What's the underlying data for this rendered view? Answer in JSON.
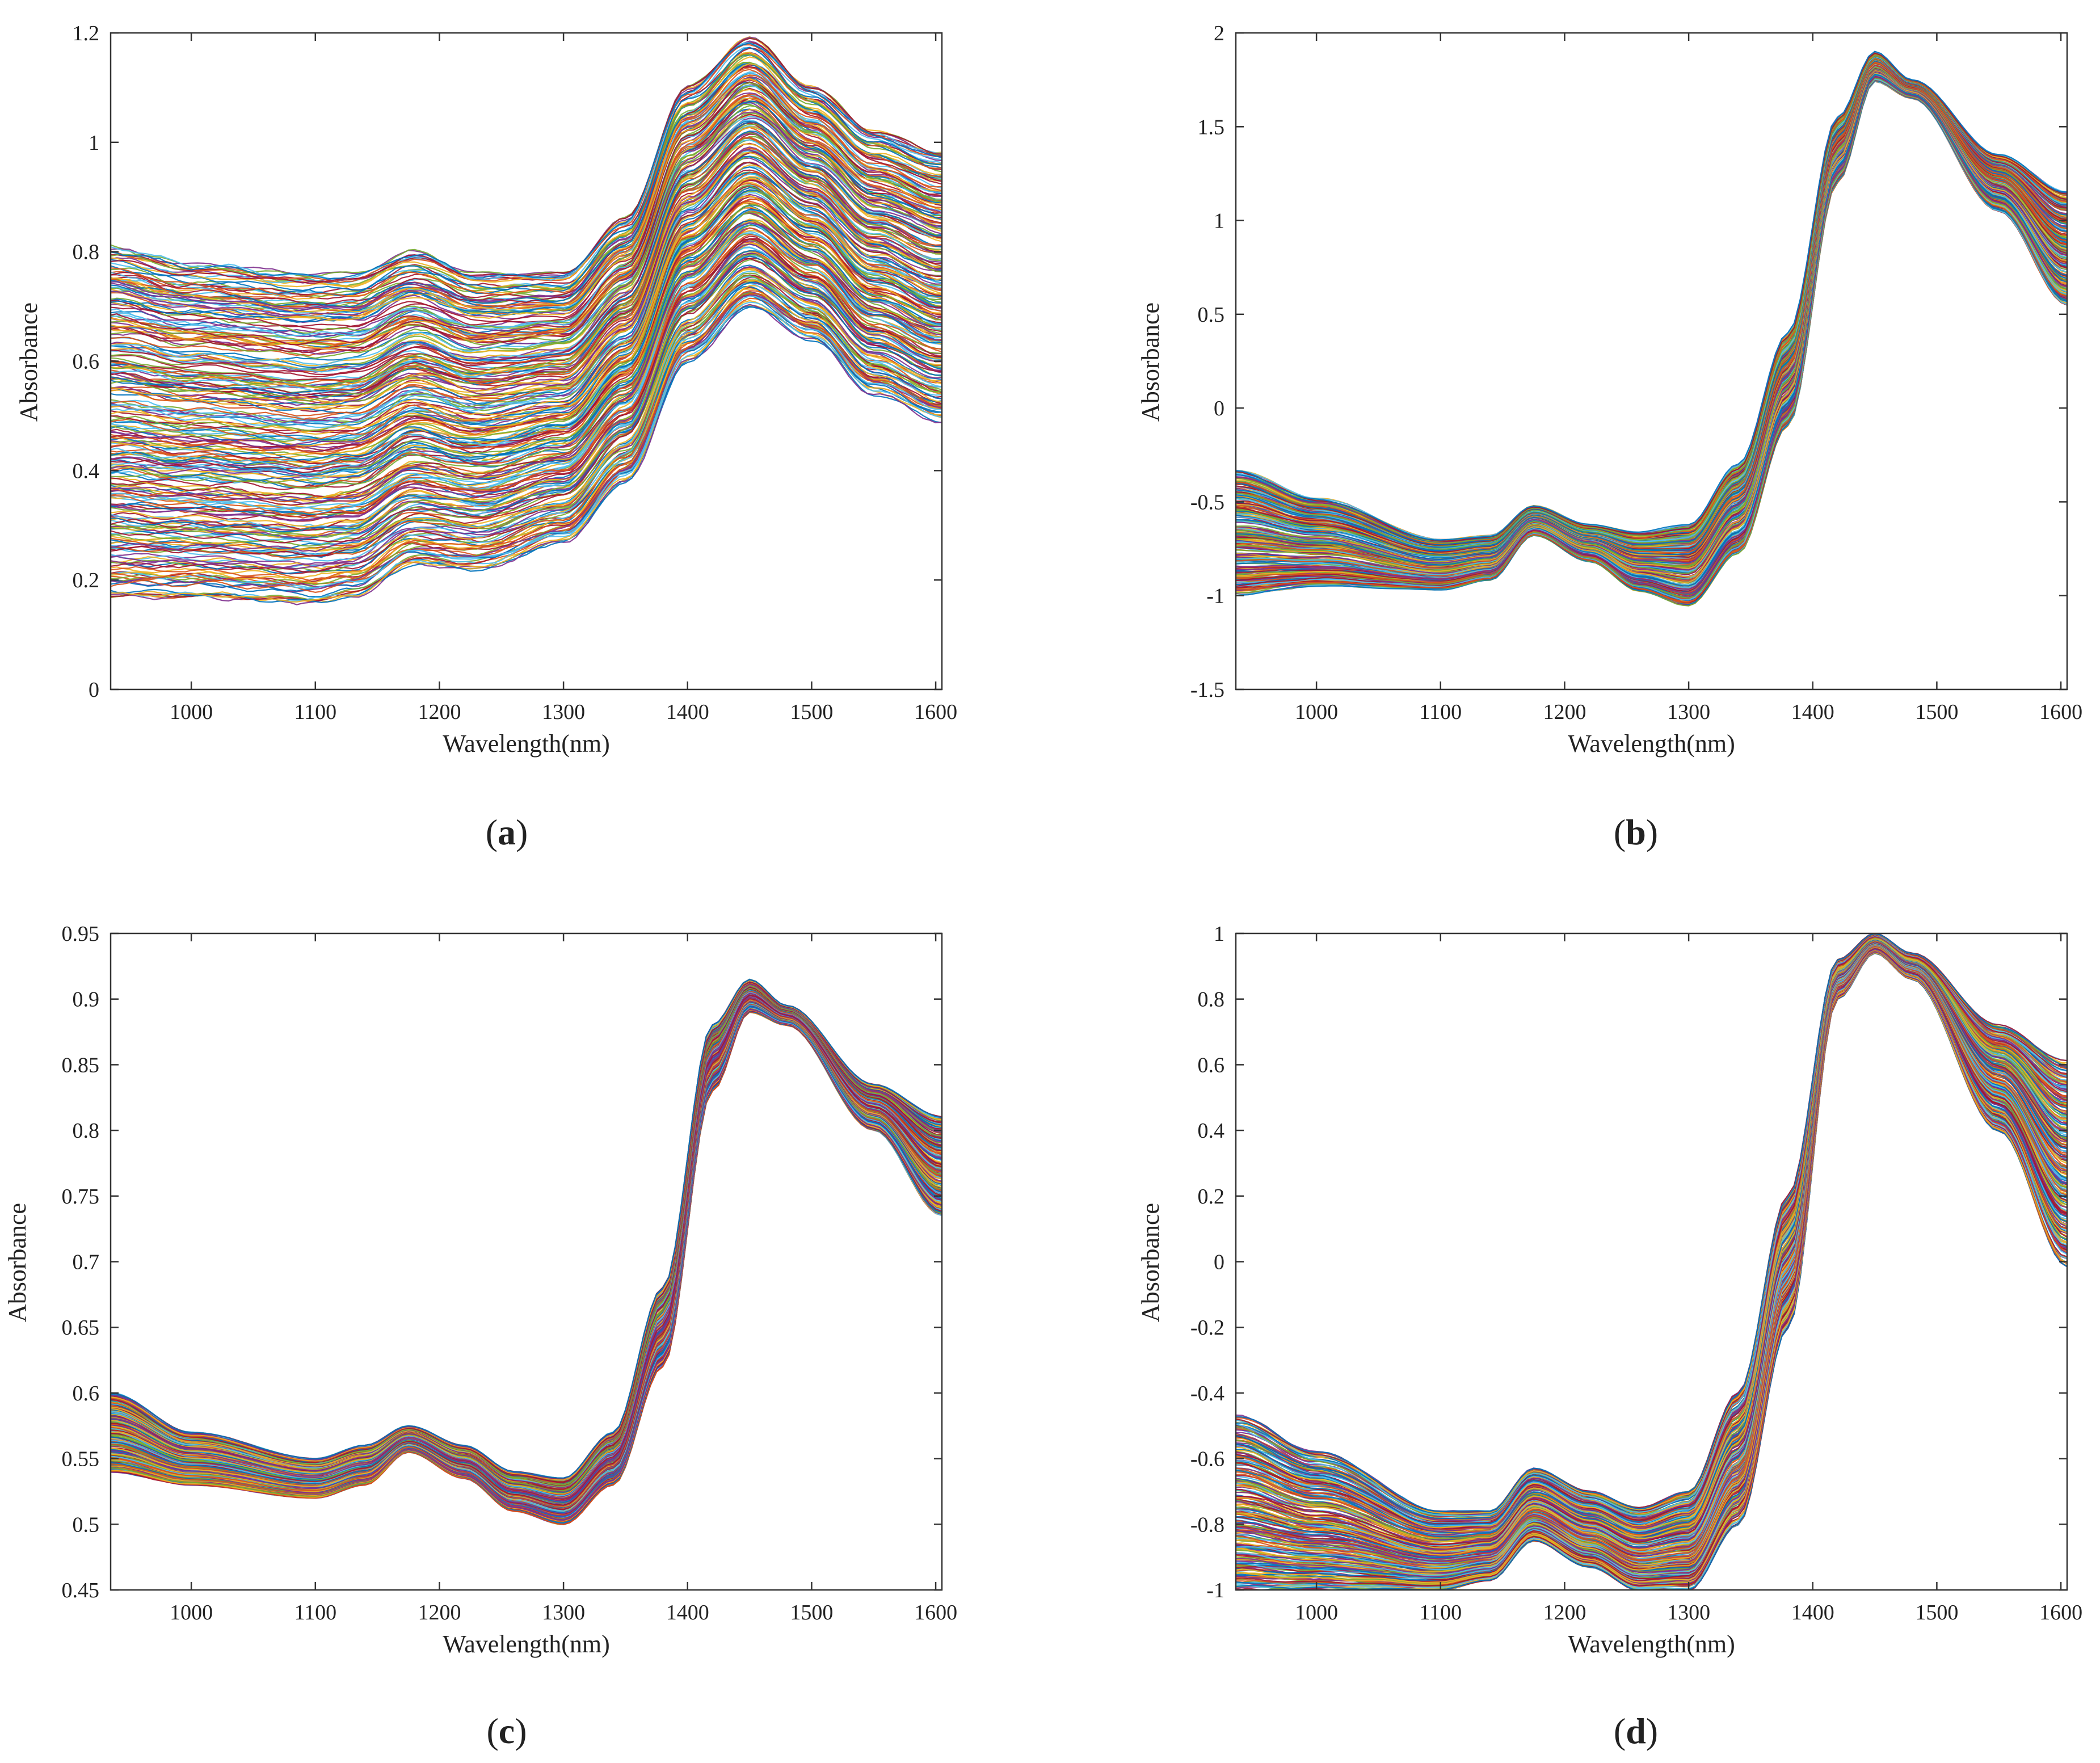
{
  "figure": {
    "panels": [
      "a",
      "b",
      "c",
      "d"
    ]
  },
  "chart_data": [
    {
      "id": "a",
      "type": "line",
      "caption": "a",
      "xlabel": "Wavelength(nm)",
      "ylabel": "Absorbance",
      "xlim": [
        935,
        1605
      ],
      "ylim": [
        0,
        1.2
      ],
      "xticks": [
        1000,
        1100,
        1200,
        1300,
        1400,
        1500,
        1600
      ],
      "yticks": [
        0,
        0.2,
        0.4,
        0.6,
        0.8,
        1,
        1.2
      ],
      "ytick_labels": [
        "0",
        "0.2",
        "0.4",
        "0.6",
        "0.8",
        "1",
        "1.2"
      ],
      "series_count": 260,
      "envelope": {
        "x": [
          935,
          1000,
          1100,
          1130,
          1180,
          1230,
          1300,
          1350,
          1400,
          1450,
          1500,
          1550,
          1605
        ],
        "upper": [
          0.81,
          0.78,
          0.76,
          0.76,
          0.8,
          0.76,
          0.76,
          0.86,
          1.1,
          1.19,
          1.1,
          1.02,
          0.98
        ],
        "lower": [
          0.17,
          0.17,
          0.16,
          0.17,
          0.23,
          0.22,
          0.27,
          0.38,
          0.6,
          0.7,
          0.64,
          0.54,
          0.49
        ]
      },
      "grid": false
    },
    {
      "id": "b",
      "type": "line",
      "caption": "b",
      "xlabel": "Wavelength(nm)",
      "ylabel": "Absorbance",
      "xlim": [
        935,
        1605
      ],
      "ylim": [
        -1.5,
        2
      ],
      "xticks": [
        1000,
        1100,
        1200,
        1300,
        1400,
        1500,
        1600
      ],
      "yticks": [
        -1.5,
        -1,
        -0.5,
        0,
        0.5,
        1,
        1.5,
        2
      ],
      "ytick_labels": [
        "-1.5",
        "-1",
        "-0.5",
        "0",
        "0.5",
        "1",
        "1.5",
        "2"
      ],
      "series_count": 260,
      "envelope": {
        "x": [
          935,
          1000,
          1100,
          1140,
          1175,
          1220,
          1260,
          1300,
          1340,
          1380,
          1420,
          1450,
          1480,
          1550,
          1605
        ],
        "upper": [
          -0.33,
          -0.48,
          -0.7,
          -0.68,
          -0.52,
          -0.62,
          -0.66,
          -0.62,
          -0.3,
          0.4,
          1.55,
          1.9,
          1.75,
          1.35,
          1.15
        ],
        "lower": [
          -1.0,
          -0.95,
          -0.97,
          -0.92,
          -0.68,
          -0.82,
          -0.98,
          -1.06,
          -0.78,
          -0.1,
          1.2,
          1.74,
          1.65,
          1.05,
          0.55
        ]
      },
      "grid": false
    },
    {
      "id": "c",
      "type": "line",
      "caption": "c",
      "xlabel": "Wavelength(nm)",
      "ylabel": "Absorbance",
      "xlim": [
        935,
        1605
      ],
      "ylim": [
        0.45,
        0.95
      ],
      "xticks": [
        1000,
        1100,
        1200,
        1300,
        1400,
        1500,
        1600
      ],
      "yticks": [
        0.45,
        0.5,
        0.55,
        0.6,
        0.65,
        0.7,
        0.75,
        0.8,
        0.85,
        0.9,
        0.95
      ],
      "ytick_labels": [
        "0.45",
        "0.5",
        "0.55",
        "0.6",
        "0.65",
        "0.7",
        "0.75",
        "0.8",
        "0.85",
        "0.9",
        "0.95"
      ],
      "series_count": 260,
      "envelope": {
        "x": [
          935,
          1000,
          1100,
          1140,
          1175,
          1220,
          1260,
          1300,
          1340,
          1380,
          1420,
          1450,
          1480,
          1550,
          1605
        ],
        "upper": [
          0.6,
          0.57,
          0.55,
          0.56,
          0.575,
          0.56,
          0.54,
          0.535,
          0.57,
          0.68,
          0.88,
          0.915,
          0.895,
          0.835,
          0.81
        ],
        "lower": [
          0.54,
          0.53,
          0.52,
          0.53,
          0.555,
          0.535,
          0.51,
          0.5,
          0.53,
          0.62,
          0.83,
          0.89,
          0.88,
          0.8,
          0.735
        ]
      },
      "grid": false
    },
    {
      "id": "d",
      "type": "line",
      "caption": "d",
      "xlabel": "Wavelength(nm)",
      "ylabel": "Absorbance",
      "xlim": [
        935,
        1605
      ],
      "ylim": [
        -1,
        1
      ],
      "xticks": [
        1000,
        1100,
        1200,
        1300,
        1400,
        1500,
        1600
      ],
      "yticks": [
        -1,
        -0.8,
        -0.6,
        -0.4,
        -0.2,
        0,
        0.2,
        0.4,
        0.6,
        0.8,
        1
      ],
      "ytick_labels": [
        "-1",
        "-0.8",
        "-0.6",
        "-0.4",
        "-0.2",
        "0",
        "0.2",
        "0.4",
        "0.6",
        "0.8",
        "1"
      ],
      "series_count": 260,
      "envelope": {
        "x": [
          935,
          1000,
          1100,
          1140,
          1175,
          1220,
          1260,
          1300,
          1340,
          1380,
          1420,
          1450,
          1480,
          1550,
          1605
        ],
        "upper": [
          -0.47,
          -0.58,
          -0.76,
          -0.76,
          -0.63,
          -0.7,
          -0.75,
          -0.7,
          -0.4,
          0.2,
          0.92,
          1.0,
          0.94,
          0.72,
          0.61
        ],
        "lower": [
          -1.0,
          -1.0,
          -1.0,
          -0.97,
          -0.85,
          -0.93,
          -1.0,
          -1.0,
          -0.8,
          -0.2,
          0.8,
          0.94,
          0.86,
          0.4,
          -0.01
        ]
      },
      "grid": false
    }
  ]
}
